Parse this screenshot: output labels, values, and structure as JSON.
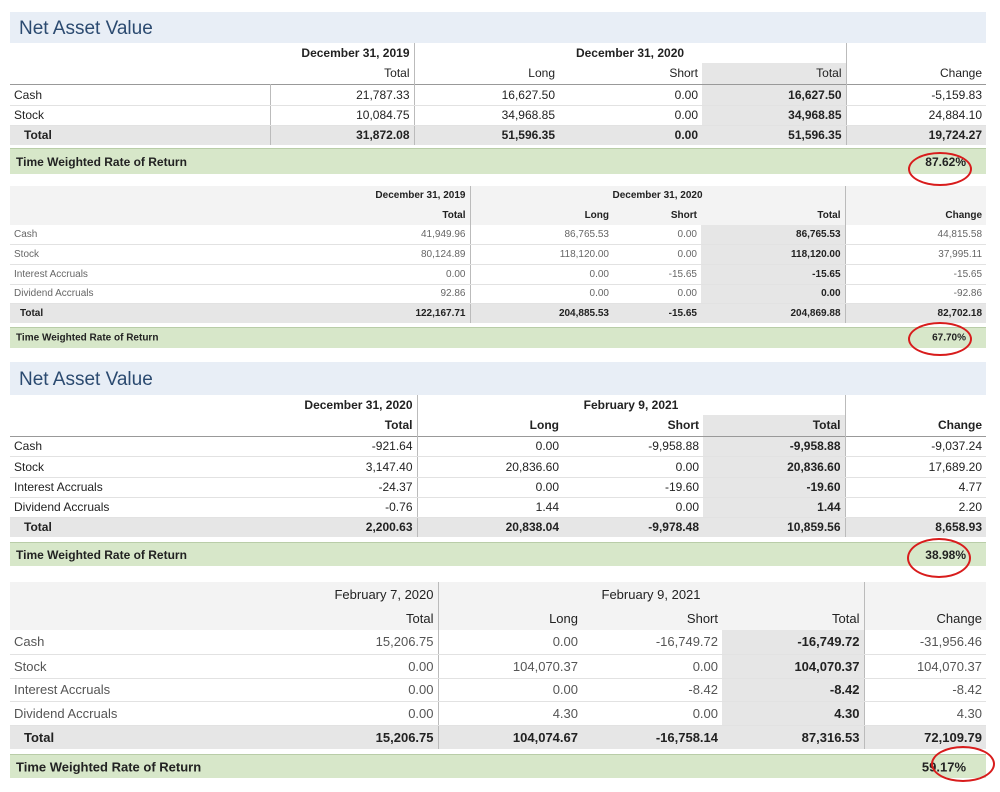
{
  "tables": [
    {
      "title": "Net Asset Value",
      "period1": "December 31, 2019",
      "period2": "December 31, 2020",
      "cols": [
        "Total",
        "Long",
        "Short",
        "Total",
        "Change"
      ],
      "rows": [
        {
          "label": "Cash",
          "v": [
            "21,787.33",
            "16,627.50",
            "0.00",
            "16,627.50",
            "-5,159.83"
          ]
        },
        {
          "label": "Stock",
          "v": [
            "10,084.75",
            "34,968.85",
            "0.00",
            "34,968.85",
            "24,884.10"
          ]
        }
      ],
      "total": {
        "label": "Total",
        "v": [
          "31,872.08",
          "51,596.35",
          "0.00",
          "51,596.35",
          "19,724.27"
        ]
      },
      "twr": {
        "label": "Time Weighted Rate of Return",
        "value": "87.62%"
      }
    },
    {
      "period1": "December 31, 2019",
      "period2": "December 31, 2020",
      "cols": [
        "Total",
        "Long",
        "Short",
        "Total",
        "Change"
      ],
      "rows": [
        {
          "label": "Cash",
          "v": [
            "41,949.96",
            "86,765.53",
            "0.00",
            "86,765.53",
            "44,815.58"
          ]
        },
        {
          "label": "Stock",
          "v": [
            "80,124.89",
            "118,120.00",
            "0.00",
            "118,120.00",
            "37,995.11"
          ]
        },
        {
          "label": "Interest Accruals",
          "v": [
            "0.00",
            "0.00",
            "-15.65",
            "-15.65",
            "-15.65"
          ]
        },
        {
          "label": "Dividend Accruals",
          "v": [
            "92.86",
            "0.00",
            "0.00",
            "0.00",
            "-92.86"
          ]
        }
      ],
      "total": {
        "label": "Total",
        "v": [
          "122,167.71",
          "204,885.53",
          "-15.65",
          "204,869.88",
          "82,702.18"
        ]
      },
      "twr": {
        "label": "Time Weighted Rate of Return",
        "value": "67.70%"
      }
    },
    {
      "title": "Net Asset Value",
      "period1": "December 31, 2020",
      "period2": "February 9, 2021",
      "cols": [
        "Total",
        "Long",
        "Short",
        "Total",
        "Change"
      ],
      "rows": [
        {
          "label": "Cash",
          "v": [
            "-921.64",
            "0.00",
            "-9,958.88",
            "-9,958.88",
            "-9,037.24"
          ]
        },
        {
          "label": "Stock",
          "v": [
            "3,147.40",
            "20,836.60",
            "0.00",
            "20,836.60",
            "17,689.20"
          ]
        },
        {
          "label": "Interest Accruals",
          "v": [
            "-24.37",
            "0.00",
            "-19.60",
            "-19.60",
            "4.77"
          ]
        },
        {
          "label": "Dividend Accruals",
          "v": [
            "-0.76",
            "1.44",
            "0.00",
            "1.44",
            "2.20"
          ]
        }
      ],
      "total": {
        "label": "Total",
        "v": [
          "2,200.63",
          "20,838.04",
          "-9,978.48",
          "10,859.56",
          "8,658.93"
        ]
      },
      "twr": {
        "label": "Time Weighted Rate of Return",
        "value": "38.98%"
      }
    },
    {
      "period1": "February 7, 2020",
      "period2": "February 9, 2021",
      "cols": [
        "Total",
        "Long",
        "Short",
        "Total",
        "Change"
      ],
      "rows": [
        {
          "label": "Cash",
          "v": [
            "15,206.75",
            "0.00",
            "-16,749.72",
            "-16,749.72",
            "-31,956.46"
          ]
        },
        {
          "label": "Stock",
          "v": [
            "0.00",
            "104,070.37",
            "0.00",
            "104,070.37",
            "104,070.37"
          ]
        },
        {
          "label": "Interest Accruals",
          "v": [
            "0.00",
            "0.00",
            "-8.42",
            "-8.42",
            "-8.42"
          ]
        },
        {
          "label": "Dividend Accruals",
          "v": [
            "0.00",
            "4.30",
            "0.00",
            "4.30",
            "4.30"
          ]
        }
      ],
      "total": {
        "label": "Total",
        "v": [
          "15,206.75",
          "104,074.67",
          "-16,758.14",
          "87,316.53",
          "72,109.79"
        ]
      },
      "twr": {
        "label": "Time Weighted Rate of Return",
        "value": "59.17%"
      }
    }
  ],
  "annotation_color": "#d81c1c"
}
